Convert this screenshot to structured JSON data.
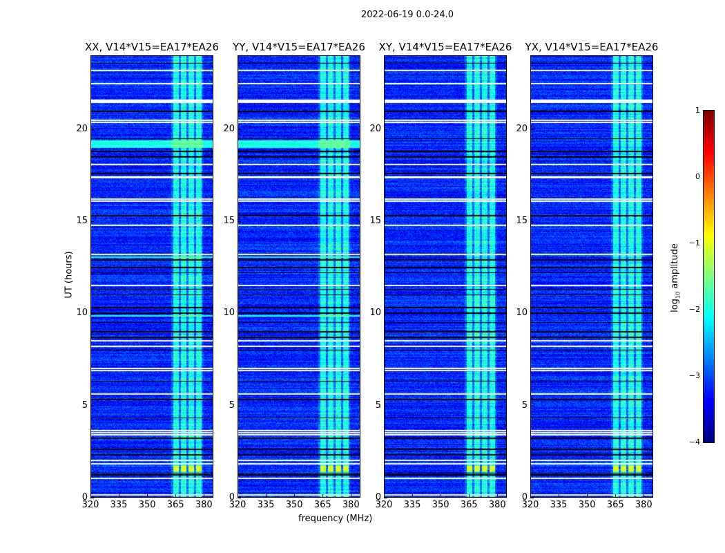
{
  "chart_data": {
    "type": "heatmap",
    "suptitle": "2022-06-19 0.0-24.0",
    "panels": [
      {
        "title": "XX, V14*V15=EA17*EA26"
      },
      {
        "title": "YY, V14*V15=EA17*EA26"
      },
      {
        "title": "XY, V14*V15=EA17*EA26"
      },
      {
        "title": "YX, V14*V15=EA17*EA26"
      }
    ],
    "xlabel": "frequency (MHz)",
    "ylabel": "UT (hours)",
    "xlim": [
      320,
      385
    ],
    "ylim": [
      0,
      24
    ],
    "xticks": [
      "320",
      "335",
      "350",
      "365",
      "380"
    ],
    "xtick_values": [
      320,
      335,
      350,
      365,
      380
    ],
    "yticks": [
      "0",
      "5",
      "10",
      "15",
      "20"
    ],
    "ytick_values": [
      0,
      5,
      10,
      15,
      20
    ],
    "colorbar": {
      "label": "log10 amplitude",
      "label_main": "log",
      "label_sub": "10",
      "label_rest": " amplitude",
      "range": [
        -4,
        1
      ],
      "ticks": [
        "1",
        "0",
        "−1",
        "−2",
        "−3",
        "−4"
      ],
      "tick_values": [
        1,
        0,
        -1,
        -2,
        -3,
        -4
      ],
      "colormap": "jet"
    },
    "background_level": -3.2,
    "rfi_subbands_mhz": [
      [
        364,
        367
      ],
      [
        368,
        371
      ],
      [
        372,
        375
      ],
      [
        376,
        379
      ]
    ],
    "rfi_level": -2.0,
    "strong_rfi_hours": [
      [
        1.4,
        1.7
      ]
    ],
    "strong_rfi_level": -1.0,
    "missing_hours": [
      0.1,
      1.0,
      1.8,
      2.0,
      3.4,
      3.5,
      3.6,
      5.6,
      6.9,
      7.0,
      8.2,
      8.5,
      11.5,
      13.2,
      14.8,
      16.1,
      16.2,
      17.4,
      18.1,
      20.4,
      20.5,
      21.5,
      21.6,
      22.5,
      23.2
    ],
    "flagged_hours": [
      1.2,
      1.3,
      2.3,
      2.6,
      3.2,
      4.3,
      5.3,
      6.3,
      8.0,
      8.7,
      9.0,
      9.5,
      10.0,
      10.3,
      11.0,
      11.3,
      12.2,
      12.5,
      12.9,
      15.3,
      17.6,
      18.5,
      18.8,
      19.5,
      21.0,
      23.6
    ],
    "bright_hours": [
      [
        19.0,
        19.4
      ],
      [
        9.8,
        9.9
      ],
      [
        13.0,
        13.1
      ]
    ]
  }
}
